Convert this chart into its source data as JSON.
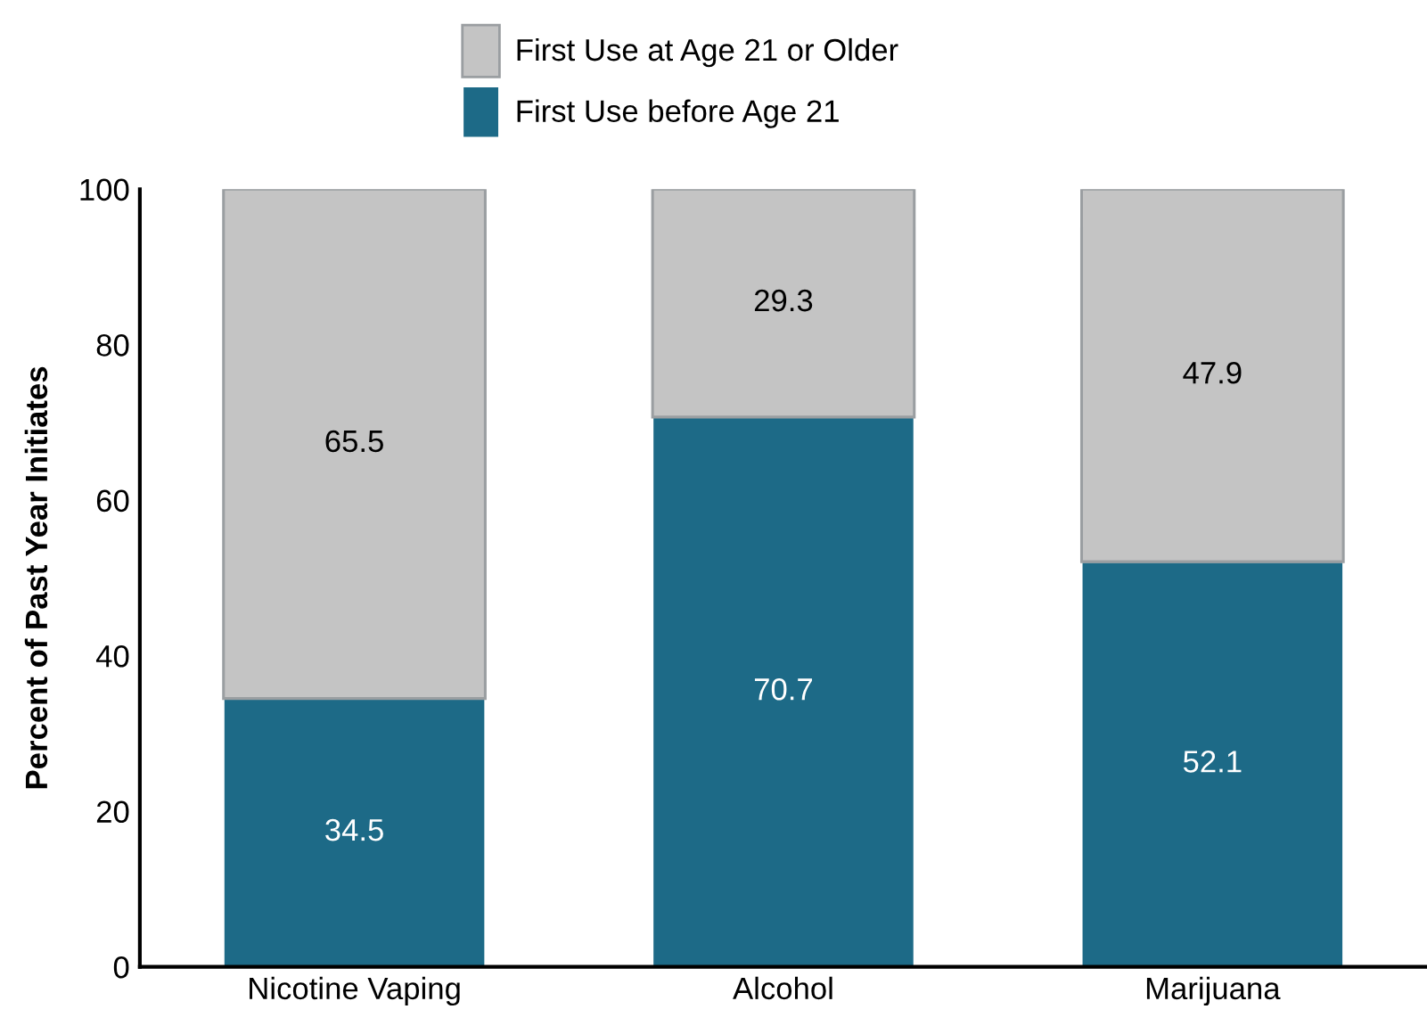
{
  "chart_data": {
    "type": "bar",
    "stacked": true,
    "categories": [
      "Nicotine Vaping",
      "Alcohol",
      "Marijuana"
    ],
    "ylabel": "Percent of Past Year Initiates",
    "ylim": [
      0,
      100
    ],
    "yticks": [
      0,
      20,
      40,
      60,
      80,
      100
    ],
    "series": [
      {
        "name": "First Use before Age 21",
        "color": "#1d6a87",
        "values": [
          34.5,
          70.7,
          52.1
        ]
      },
      {
        "name": "First Use at Age 21 or Older",
        "color": "#c4c4c4",
        "values": [
          65.5,
          29.3,
          47.9
        ]
      }
    ],
    "data_labels": true,
    "legend": "top",
    "grid": false
  }
}
